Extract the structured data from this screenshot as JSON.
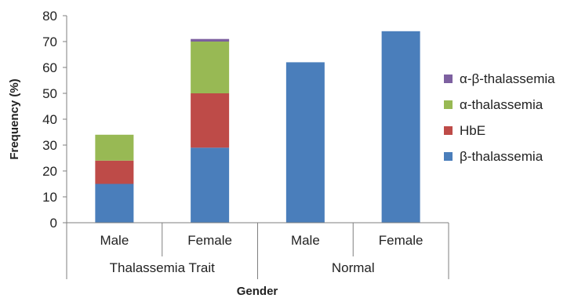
{
  "chart_data": {
    "type": "bar",
    "stacked": true,
    "title": "",
    "xlabel": "Gender",
    "ylabel": "Frequency (%)",
    "ylim": [
      0,
      80
    ],
    "yticks": [
      0,
      10,
      20,
      30,
      40,
      50,
      60,
      70,
      80
    ],
    "categories": [
      "Male",
      "Female",
      "Male",
      "Female"
    ],
    "groups": [
      {
        "label": "Thalassemia Trait",
        "categories": [
          "Male",
          "Female"
        ]
      },
      {
        "label": "Normal",
        "categories": [
          "Male",
          "Female"
        ]
      }
    ],
    "series": [
      {
        "name": "β-thalassemia",
        "color": "#4a7ebb",
        "values": [
          15,
          29,
          62,
          74
        ]
      },
      {
        "name": "HbE",
        "color": "#be4b48",
        "values": [
          9,
          21,
          0,
          0
        ]
      },
      {
        "name": "α-thalassemia",
        "color": "#98b954",
        "values": [
          10,
          20,
          0,
          0
        ]
      },
      {
        "name": "α-β-thalassemia",
        "color": "#7d60a0",
        "values": [
          0,
          1,
          0,
          0
        ]
      }
    ],
    "legend_position": "right",
    "legend_order": [
      "α-β-thalassemia",
      "α-thalassemia",
      "HbE",
      "β-thalassemia"
    ],
    "grid": false
  }
}
